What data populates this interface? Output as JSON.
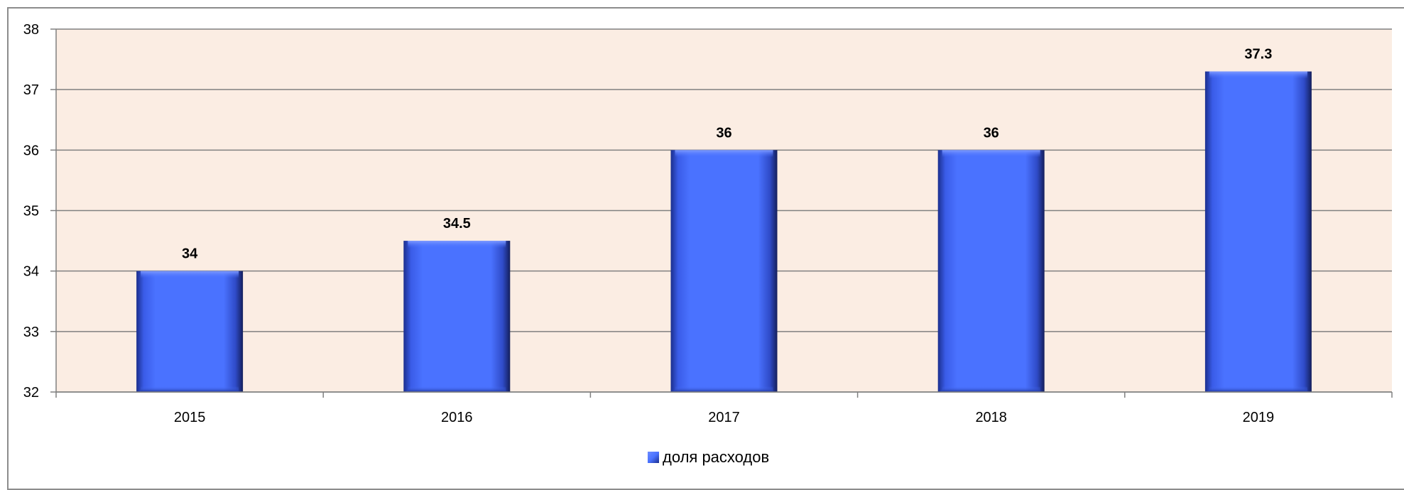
{
  "chart_data": {
    "type": "bar",
    "title": "",
    "xlabel": "",
    "ylabel": "",
    "categories": [
      "2015",
      "2016",
      "2017",
      "2018",
      "2019"
    ],
    "series": [
      {
        "name": "доля расходов",
        "values": [
          34,
          34.5,
          36,
          36,
          37.3
        ],
        "data_labels": [
          "34",
          "34.5",
          "36",
          "36",
          "37.3"
        ]
      }
    ],
    "ylim": [
      32,
      38
    ],
    "yticks": [
      "32",
      "33",
      "34",
      "35",
      "36",
      "37",
      "38"
    ],
    "grid": true,
    "legend": "bottom",
    "colors": {
      "bar": "#4a72ff",
      "bar_dark": "#1a2f8c",
      "plot_background": "#fbede3",
      "gridline": "#808080"
    }
  }
}
